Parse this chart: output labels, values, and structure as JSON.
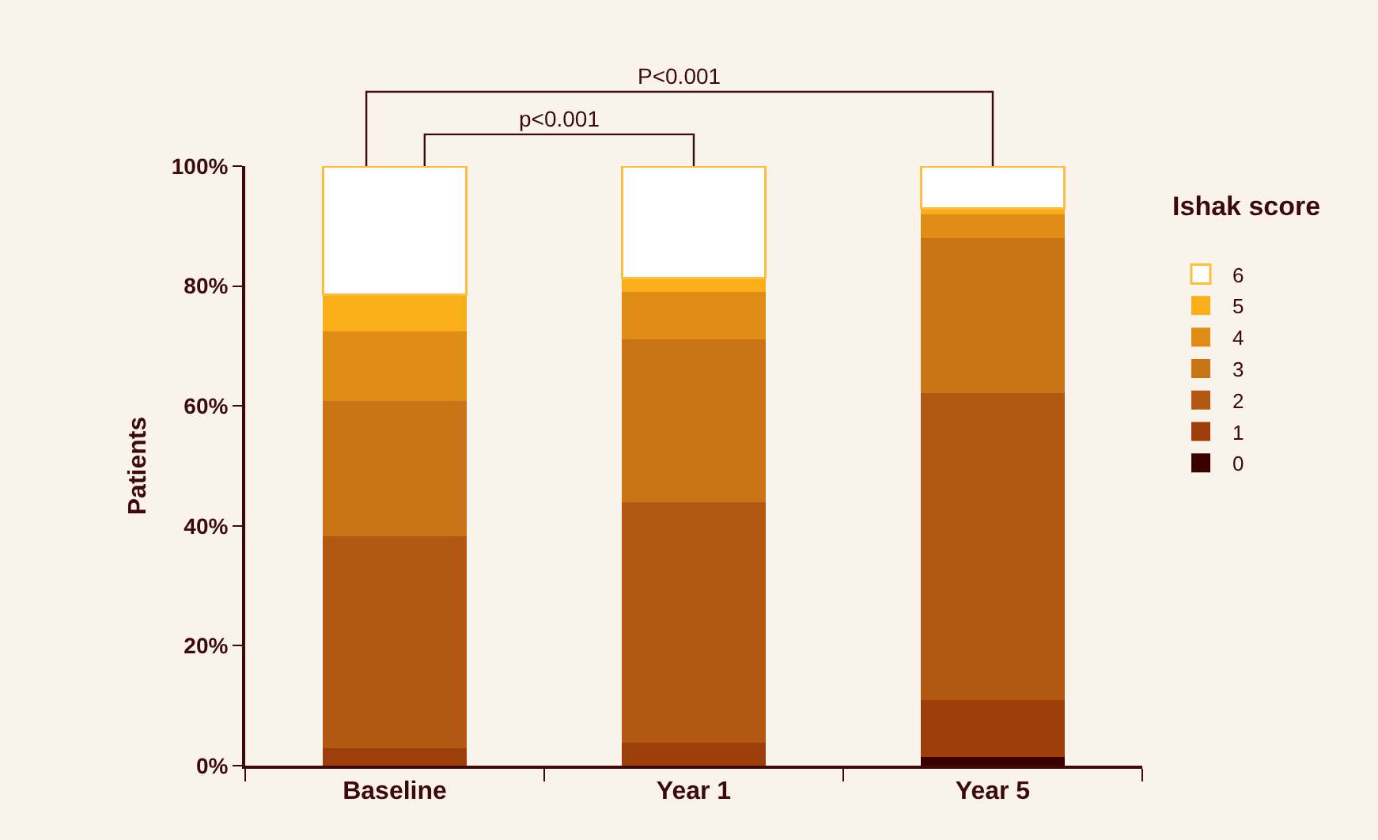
{
  "chart_data": {
    "type": "bar",
    "stacked": true,
    "ylabel": "Patients",
    "legend_title": "Ishak score",
    "legend": "right",
    "grid": false,
    "categories": [
      "Baseline",
      "Year 1",
      "Year 5"
    ],
    "ylim": [
      0,
      100
    ],
    "yticks": [
      {
        "value": 0,
        "label": "0%"
      },
      {
        "value": 20,
        "label": "20%"
      },
      {
        "value": 40,
        "label": "40%"
      },
      {
        "value": 60,
        "label": "60%"
      },
      {
        "value": 80,
        "label": "80%"
      },
      {
        "value": 100,
        "label": "100%"
      }
    ],
    "series": [
      {
        "name": "0",
        "color": "#3a0000",
        "values": [
          0,
          0,
          1.4
        ]
      },
      {
        "name": "1",
        "color": "#9e3f0b",
        "values": [
          2.9,
          3.8,
          9.5
        ]
      },
      {
        "name": "2",
        "color": "#b35812",
        "values": [
          35.4,
          40.1,
          51.2
        ]
      },
      {
        "name": "3",
        "color": "#c97417",
        "values": [
          22.5,
          27.2,
          25.9
        ]
      },
      {
        "name": "4",
        "color": "#e08c17",
        "values": [
          11.6,
          7.9,
          3.9
        ]
      },
      {
        "name": "5",
        "color": "#f9ae1a",
        "values": [
          6.2,
          2.3,
          1.0
        ]
      },
      {
        "name": "6",
        "color": "#ffffff",
        "values": [
          21.4,
          18.7,
          7.1
        ]
      }
    ],
    "annotations": [
      "P<0.001",
      "p<0.001"
    ]
  }
}
